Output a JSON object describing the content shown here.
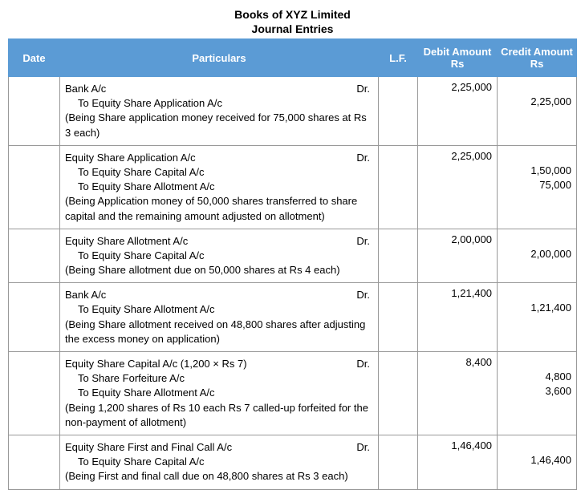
{
  "title": "Books of XYZ Limited",
  "subtitle": "Journal Entries",
  "headers": {
    "date": "Date",
    "particulars": "Particulars",
    "lf": "L.F.",
    "debit": "Debit Amount Rs",
    "credit": "Credit Amount Rs"
  },
  "entries": [
    {
      "lines": [
        {
          "text": "Bank A/c",
          "dr": "Dr.",
          "indent": false
        },
        {
          "text": "To Equity Share Application A/c",
          "dr": "",
          "indent": true
        }
      ],
      "narration": "(Being Share application money received for 75,000 shares at Rs 3 each)",
      "debits": [
        "2,25,000",
        ""
      ],
      "credits": [
        "",
        "2,25,000"
      ]
    },
    {
      "lines": [
        {
          "text": "Equity Share Application A/c",
          "dr": "Dr.",
          "indent": false
        },
        {
          "text": "To Equity Share Capital A/c",
          "dr": "",
          "indent": true
        },
        {
          "text": "To Equity Share Allotment A/c",
          "dr": "",
          "indent": true
        }
      ],
      "narration": "(Being Application money of 50,000 shares transferred to share capital and the remaining amount adjusted on allotment)",
      "debits": [
        "2,25,000",
        "",
        ""
      ],
      "credits": [
        "",
        "1,50,000",
        "75,000"
      ]
    },
    {
      "lines": [
        {
          "text": "Equity Share Allotment A/c",
          "dr": "Dr.",
          "indent": false
        },
        {
          "text": "To Equity Share Capital A/c",
          "dr": "",
          "indent": true
        }
      ],
      "narration": "(Being Share allotment due on 50,000 shares at Rs 4 each)",
      "debits": [
        "2,00,000",
        ""
      ],
      "credits": [
        "",
        "2,00,000"
      ]
    },
    {
      "lines": [
        {
          "text": "Bank A/c",
          "dr": "Dr.",
          "indent": false
        },
        {
          "text": "To Equity Share Allotment A/c",
          "dr": "",
          "indent": true
        }
      ],
      "narration": "(Being Share allotment received on 48,800 shares after adjusting the excess money on application)",
      "debits": [
        "1,21,400",
        ""
      ],
      "credits": [
        "",
        "1,21,400"
      ]
    },
    {
      "lines": [
        {
          "text": "Equity Share Capital A/c (1,200 × Rs 7)",
          "dr": "Dr.",
          "indent": false
        },
        {
          "text": "To Share Forfeiture A/c",
          "dr": "",
          "indent": true
        },
        {
          "text": "To Equity Share Allotment A/c",
          "dr": "",
          "indent": true
        }
      ],
      "narration": "(Being 1,200 shares of Rs 10 each Rs 7 called-up forfeited for the non-payment of allotment)",
      "debits": [
        "8,400",
        "",
        ""
      ],
      "credits": [
        "",
        "4,800",
        "3,600"
      ]
    },
    {
      "lines": [
        {
          "text": "Equity Share First and Final Call A/c",
          "dr": "Dr.",
          "indent": false
        },
        {
          "text": "To Equity Share Capital A/c",
          "dr": "",
          "indent": true
        }
      ],
      "narration": "(Being First and final call due on 48,800 shares at Rs 3 each)",
      "debits": [
        "1,46,400",
        ""
      ],
      "credits": [
        "",
        "1,46,400"
      ]
    }
  ]
}
